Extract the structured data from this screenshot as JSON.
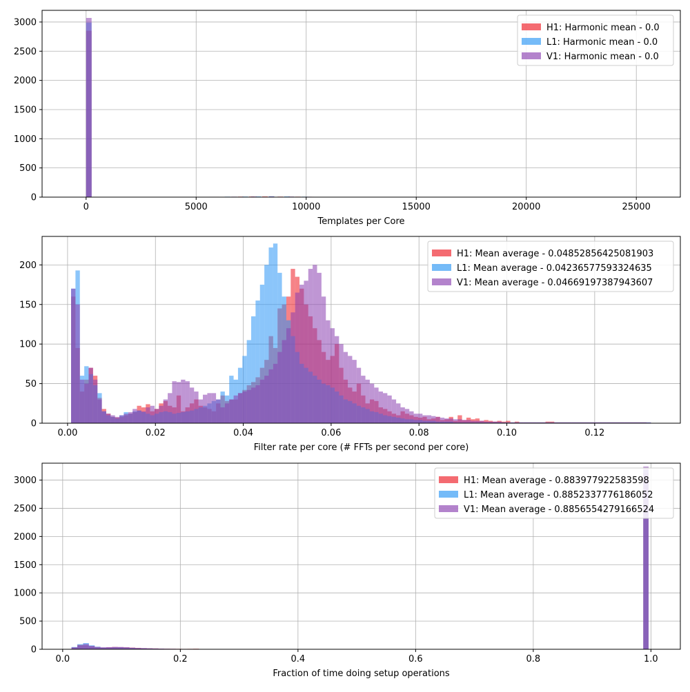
{
  "colors": {
    "H1": "#ee1c25",
    "L1": "#2b96f5",
    "V1": "#8a40b0",
    "grid": "#b0b0b0"
  },
  "chart_data": [
    {
      "type": "histogram",
      "xlabel": "Templates per Core",
      "ylabel": "",
      "xlim": [
        -2000,
        27000
      ],
      "ylim": [
        0,
        3200
      ],
      "xticks": [
        {
          "v": 0,
          "label": "0"
        },
        {
          "v": 5000,
          "label": "5000"
        },
        {
          "v": 10000,
          "label": "10000"
        },
        {
          "v": 15000,
          "label": "15000"
        },
        {
          "v": 20000,
          "label": "20000"
        },
        {
          "v": 25000,
          "label": "25000"
        }
      ],
      "yticks": [
        {
          "v": 0,
          "label": "0"
        },
        {
          "v": 500,
          "label": "500"
        },
        {
          "v": 1000,
          "label": "1000"
        },
        {
          "v": 1500,
          "label": "1500"
        },
        {
          "v": 2000,
          "label": "2000"
        },
        {
          "v": 2500,
          "label": "2500"
        },
        {
          "v": 3000,
          "label": "3000"
        }
      ],
      "grid": true,
      "legend_position": "top-right",
      "series": [
        {
          "name": "H1: Harmonic mean  - 0.0",
          "color_key": "H1",
          "bins": [
            [
              0,
              250,
              2850
            ],
            [
              3200,
              3450,
              3
            ],
            [
              4100,
              4350,
              4
            ],
            [
              5000,
              5250,
              5
            ],
            [
              5800,
              6050,
              6
            ],
            [
              6900,
              7150,
              9
            ],
            [
              7400,
              7650,
              10
            ],
            [
              8000,
              8250,
              12
            ],
            [
              8700,
              8950,
              9
            ],
            [
              9500,
              9750,
              8
            ],
            [
              10100,
              10350,
              6
            ],
            [
              10700,
              10950,
              4
            ]
          ]
        },
        {
          "name": "L1: Harmonic mean  - 0.0",
          "color_key": "L1",
          "bins": [
            [
              0,
              250,
              2990
            ],
            [
              3700,
              3950,
              2
            ],
            [
              4800,
              5050,
              4
            ],
            [
              6300,
              6550,
              8
            ],
            [
              7100,
              7350,
              10
            ],
            [
              7700,
              7950,
              12
            ],
            [
              8300,
              8550,
              14
            ],
            [
              9000,
              9250,
              12
            ],
            [
              9800,
              10050,
              8
            ],
            [
              10600,
              10850,
              5
            ]
          ]
        },
        {
          "name": "V1: Harmonic mean  - 0.0",
          "color_key": "V1",
          "bins": [
            [
              0,
              250,
              3070
            ],
            [
              3500,
              3750,
              3
            ],
            [
              4500,
              4750,
              5
            ],
            [
              5600,
              5850,
              6
            ],
            [
              6600,
              6850,
              8
            ],
            [
              7500,
              7750,
              11
            ],
            [
              8300,
              8550,
              12
            ],
            [
              9200,
              9450,
              10
            ],
            [
              10000,
              10250,
              7
            ],
            [
              11000,
              11250,
              4
            ]
          ]
        }
      ]
    },
    {
      "type": "histogram",
      "xlabel": "Filter rate per core (# FFTs per second per core)",
      "ylabel": "",
      "xlim": [
        -0.0058,
        0.1395
      ],
      "ylim": [
        0,
        236
      ],
      "xticks": [
        {
          "v": 0,
          "label": "0.00"
        },
        {
          "v": 0.02,
          "label": "0.02"
        },
        {
          "v": 0.04,
          "label": "0.04"
        },
        {
          "v": 0.06,
          "label": "0.06"
        },
        {
          "v": 0.08,
          "label": "0.08"
        },
        {
          "v": 0.1,
          "label": "0.10"
        },
        {
          "v": 0.12,
          "label": "0.12"
        }
      ],
      "yticks": [
        {
          "v": 0,
          "label": "0"
        },
        {
          "v": 50,
          "label": "50"
        },
        {
          "v": 100,
          "label": "100"
        },
        {
          "v": 150,
          "label": "150"
        },
        {
          "v": 200,
          "label": "200"
        }
      ],
      "grid": true,
      "legend_position": "top-right",
      "series": [
        {
          "name": "H1: Mean average - 0.04852856425081903",
          "color_key": "H1",
          "x0": 0.0008,
          "dx": 0.001,
          "values": [
            160,
            95,
            40,
            55,
            70,
            60,
            32,
            18,
            12,
            8,
            7,
            8,
            10,
            12,
            14,
            22,
            20,
            24,
            15,
            18,
            25,
            28,
            22,
            20,
            35,
            15,
            20,
            25,
            30,
            22,
            20,
            18,
            15,
            25,
            35,
            28,
            30,
            30,
            38,
            42,
            48,
            52,
            58,
            70,
            80,
            110,
            95,
            145,
            150,
            160,
            195,
            185,
            170,
            150,
            135,
            120,
            105,
            90,
            80,
            85,
            100,
            70,
            55,
            45,
            40,
            50,
            35,
            25,
            30,
            28,
            20,
            18,
            15,
            12,
            10,
            15,
            12,
            10,
            8,
            7,
            8,
            5,
            6,
            8,
            4,
            5,
            8,
            3,
            10,
            4,
            7,
            5,
            6,
            3,
            4,
            3,
            2,
            3,
            2,
            3,
            1,
            2,
            1,
            1,
            1,
            1,
            1,
            1,
            2,
            2,
            1,
            1,
            1,
            1,
            1,
            1,
            1,
            1,
            1,
            1,
            1,
            1,
            1,
            1,
            1,
            1,
            1,
            1,
            1,
            1,
            1
          ]
        },
        {
          "name": "L1: Mean average - 0.04236577593324635",
          "color_key": "L1",
          "x0": 0.0008,
          "dx": 0.001,
          "values": [
            170,
            193,
            60,
            72,
            62,
            48,
            38,
            15,
            10,
            8,
            6,
            10,
            14,
            12,
            15,
            16,
            14,
            12,
            10,
            12,
            14,
            15,
            14,
            12,
            13,
            14,
            15,
            16,
            18,
            20,
            22,
            25,
            28,
            30,
            40,
            35,
            60,
            55,
            70,
            85,
            105,
            135,
            155,
            175,
            200,
            222,
            227,
            190,
            160,
            130,
            110,
            90,
            75,
            70,
            65,
            60,
            55,
            50,
            48,
            45,
            40,
            35,
            30,
            28,
            25,
            22,
            20,
            18,
            15,
            14,
            12,
            10,
            9,
            8,
            7,
            6,
            5,
            5,
            4,
            4,
            3,
            3,
            3,
            2,
            2,
            2,
            2,
            1,
            1,
            1,
            1,
            1,
            1,
            1,
            1,
            1,
            1,
            1,
            1,
            1,
            1,
            1,
            1,
            1,
            1,
            1,
            1,
            1,
            1,
            1,
            1,
            1,
            1,
            1,
            1,
            1,
            1,
            1,
            1,
            1,
            1,
            1,
            1,
            1,
            1,
            1,
            1,
            1,
            1,
            1,
            1,
            1
          ]
        },
        {
          "name": "V1: Mean average - 0.04669197387943607",
          "color_key": "V1",
          "x0": 0.0008,
          "dx": 0.001,
          "values": [
            170,
            150,
            55,
            50,
            70,
            55,
            30,
            15,
            12,
            10,
            8,
            10,
            12,
            14,
            18,
            16,
            15,
            20,
            22,
            18,
            22,
            30,
            38,
            53,
            52,
            55,
            53,
            45,
            40,
            30,
            36,
            38,
            38,
            30,
            20,
            25,
            30,
            35,
            38,
            40,
            42,
            45,
            48,
            55,
            60,
            68,
            75,
            90,
            105,
            120,
            140,
            165,
            175,
            180,
            195,
            200,
            190,
            160,
            130,
            120,
            110,
            100,
            90,
            85,
            80,
            70,
            60,
            55,
            50,
            45,
            40,
            38,
            35,
            30,
            25,
            20,
            18,
            15,
            12,
            12,
            10,
            10,
            9,
            8,
            7,
            6,
            6,
            5,
            5,
            4,
            4,
            3,
            3,
            3,
            2,
            2,
            2,
            2,
            1,
            1,
            1,
            1,
            1,
            1,
            1,
            1,
            1,
            1,
            1,
            1,
            1,
            1,
            1,
            1,
            1,
            1,
            1,
            1,
            1,
            1,
            1,
            1,
            1,
            1,
            1,
            1,
            1,
            1,
            1,
            1,
            1,
            1
          ]
        }
      ]
    },
    {
      "type": "histogram",
      "xlabel": "Fraction of time doing setup operations",
      "ylabel": "",
      "xlim": [
        -0.035,
        1.05
      ],
      "ylim": [
        0,
        3300
      ],
      "xticks": [
        {
          "v": 0,
          "label": "0.0"
        },
        {
          "v": 0.2,
          "label": "0.2"
        },
        {
          "v": 0.4,
          "label": "0.4"
        },
        {
          "v": 0.6,
          "label": "0.6"
        },
        {
          "v": 0.8,
          "label": "0.8"
        },
        {
          "v": 1.0,
          "label": "1.0"
        }
      ],
      "yticks": [
        {
          "v": 0,
          "label": "0"
        },
        {
          "v": 500,
          "label": "500"
        },
        {
          "v": 1000,
          "label": "1000"
        },
        {
          "v": 1500,
          "label": "1500"
        },
        {
          "v": 2000,
          "label": "2000"
        },
        {
          "v": 2500,
          "label": "2500"
        },
        {
          "v": 3000,
          "label": "3000"
        }
      ],
      "grid": true,
      "legend_position": "top-right",
      "series": [
        {
          "name": "H1: Mean average - 0.883977922583598",
          "color_key": "H1",
          "x0": 0.015,
          "dx": 0.00985,
          "values": [
            30,
            80,
            70,
            55,
            40,
            30,
            35,
            40,
            38,
            35,
            30,
            25,
            20,
            18,
            15,
            12,
            10,
            9,
            8,
            7,
            8,
            10,
            6,
            5,
            4,
            4
          ]
        },
        {
          "name": "L1: Mean average - 0.8852337776186052",
          "color_key": "L1",
          "x0": 0.015,
          "dx": 0.00985,
          "values": [
            40,
            90,
            110,
            70,
            45,
            30,
            30,
            35,
            35,
            30,
            25,
            20,
            18,
            15,
            12,
            10,
            8,
            7,
            6,
            5,
            5,
            6,
            4,
            3,
            3,
            2
          ]
        },
        {
          "name": "V1: Mean average - 0.8856554279166524",
          "color_key": "V1",
          "x0": 0.015,
          "dx": 0.00985,
          "values": [
            35,
            70,
            95,
            60,
            40,
            35,
            38,
            42,
            40,
            35,
            28,
            22,
            20,
            16,
            14,
            11,
            9,
            8,
            7,
            6,
            6,
            5,
            4,
            4,
            3,
            3
          ]
        }
      ],
      "spikes": [
        {
          "color_key": "H1",
          "x": 0.9915,
          "value": 3120
        },
        {
          "color_key": "L1",
          "x": 0.9915,
          "value": 3180
        },
        {
          "color_key": "V1",
          "x": 0.9915,
          "value": 3240
        }
      ]
    }
  ]
}
